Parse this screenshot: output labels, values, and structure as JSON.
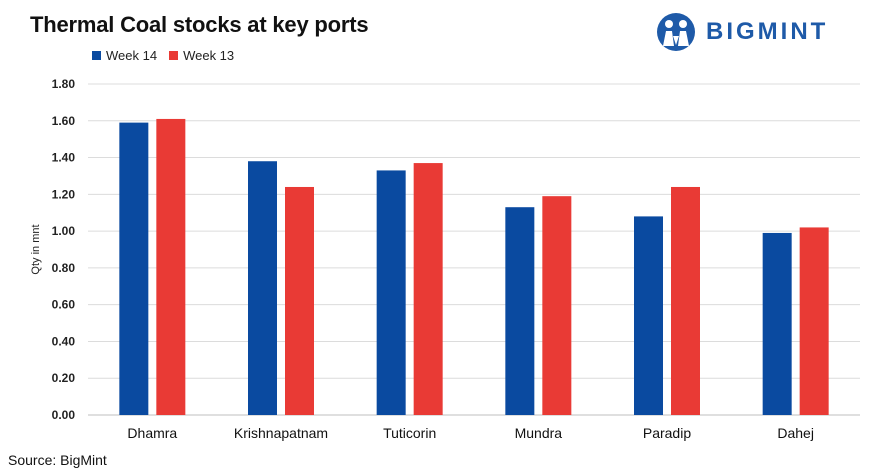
{
  "header": {
    "title": "Thermal Coal stocks at key ports",
    "logo_text": "BIGMINT"
  },
  "footer": {
    "source": "Source: BigMint"
  },
  "chart_data": {
    "type": "bar",
    "title": "Thermal Coal stocks at key ports",
    "xlabel": "",
    "ylabel": "Qty in mnt",
    "ylim": [
      0,
      1.8
    ],
    "yticks": [
      "0.00",
      "0.20",
      "0.40",
      "0.60",
      "0.80",
      "1.00",
      "1.20",
      "1.40",
      "1.60",
      "1.80"
    ],
    "grid": true,
    "legend_position": "top-left",
    "categories": [
      "Dhamra",
      "Krishnapatnam",
      "Tuticorin",
      "Mundra",
      "Paradip",
      "Dahej"
    ],
    "series": [
      {
        "name": "Week 14",
        "color": "#0a4aa0",
        "values": [
          1.59,
          1.38,
          1.33,
          1.13,
          1.08,
          0.99
        ]
      },
      {
        "name": "Week 13",
        "color": "#e93a35",
        "values": [
          1.61,
          1.24,
          1.37,
          1.19,
          1.24,
          1.02
        ]
      }
    ]
  }
}
